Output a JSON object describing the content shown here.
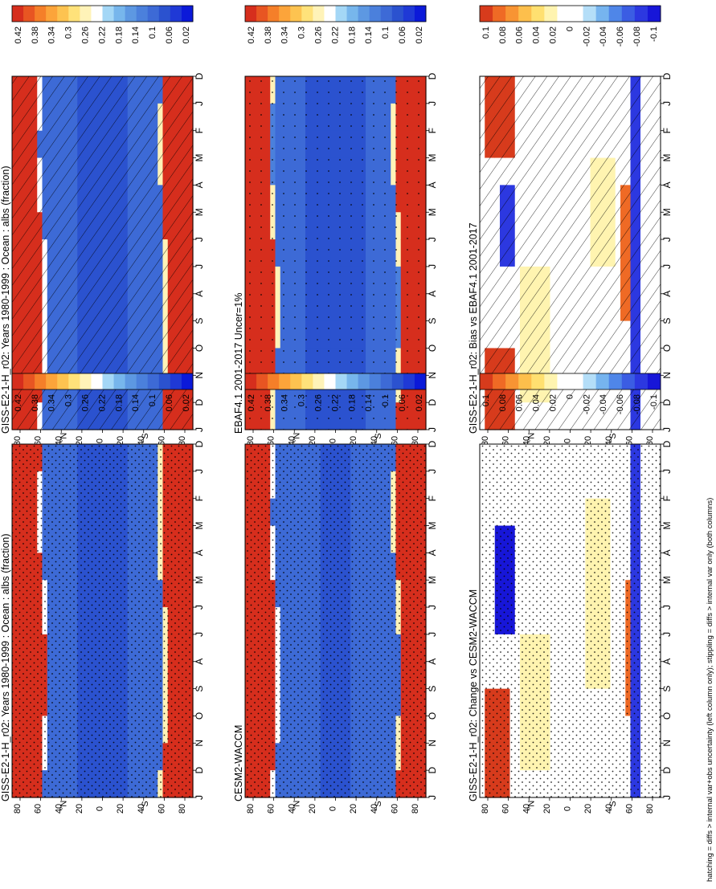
{
  "figure": {
    "footnote": "hatching = diffs > internal var+obs uncertainty (left column only); stippling = diffs > internal var only (both columns)"
  },
  "colors": {
    "abs_palette": [
      "#0b19d9",
      "#1f39d6",
      "#2b52cf",
      "#3d6ad6",
      "#4b80dc",
      "#5d98e2",
      "#77b6ec",
      "#a4d7f6",
      "#ffffff",
      "#fff3b8",
      "#ffe27a",
      "#fdc350",
      "#fca43a",
      "#f57f29",
      "#e85522",
      "#d62e1d"
    ],
    "diff_palette": [
      "#1716d8",
      "#2c38e0",
      "#3b5de3",
      "#4f86e8",
      "#76b4ef",
      "#b4def8",
      "#ffffff",
      "#ffffff",
      "#fff4b0",
      "#ffe070",
      "#fdbf4c",
      "#f89433",
      "#ef6a25",
      "#d73b1c"
    ]
  },
  "chart_data": [
    {
      "id": "gcm-ebaf",
      "type": "heatmap",
      "title": "GISS-E2-1-H_r02: Years 1980-1999 : Ocean : albs (fraction)",
      "x_ticks": [
        "D",
        "J",
        "F",
        "M",
        "A",
        "M",
        "J",
        "J",
        "A",
        "S",
        "O",
        "N",
        "D",
        "J"
      ],
      "y_ticks": [
        "80",
        "60",
        "40",
        "20",
        "0",
        "20",
        "40",
        "60",
        "80"
      ],
      "y_hemisphere_labels": [
        "°N",
        "°S"
      ],
      "colorbar": [
        "0.42",
        "0.38",
        "0.34",
        "0.3",
        "0.26",
        "0.22",
        "0.18",
        "0.14",
        "0.1",
        "0.06",
        "0.02"
      ],
      "overlay": "hatching",
      "field": "obs"
    },
    {
      "id": "ebaf",
      "type": "heatmap",
      "title": "EBAF4.1 2001-2017 Uncer=1%",
      "x_ticks": [
        "D",
        "J",
        "F",
        "M",
        "A",
        "M",
        "J",
        "J",
        "A",
        "S",
        "O",
        "N",
        "D",
        "J"
      ],
      "y_ticks": [
        "80",
        "60",
        "40",
        "20",
        "0",
        "20",
        "40",
        "60",
        "80"
      ],
      "y_hemisphere_labels": [
        "°N",
        "°S"
      ],
      "colorbar": [
        "0.42",
        "0.38",
        "0.34",
        "0.3",
        "0.26",
        "0.22",
        "0.18",
        "0.14",
        "0.1",
        "0.06",
        "0.02"
      ],
      "overlay": "sparse",
      "field": "obs2"
    },
    {
      "id": "bias-ebaf",
      "type": "heatmap",
      "title": "GISS-E2-1-H_r02: Bias vs EBAF4.1 2001-2017",
      "x_ticks": [
        "D",
        "J",
        "F",
        "M",
        "A",
        "M",
        "J",
        "J",
        "A",
        "S",
        "O",
        "N",
        "D",
        "J"
      ],
      "y_ticks": [
        "80",
        "60",
        "40",
        "20",
        "0",
        "20",
        "40",
        "60",
        "80"
      ],
      "y_hemisphere_labels": [
        "°N",
        "°S"
      ],
      "colorbar": [
        "0.1",
        "0.08",
        "0.06",
        "0.04",
        "0.02",
        "0",
        "-0.02",
        "-0.04",
        "-0.06",
        "-0.08",
        "-0.1"
      ],
      "overlay": "hatching",
      "field": "bias"
    },
    {
      "id": "gcm-cesm",
      "type": "heatmap",
      "title": "GISS-E2-1-H_r02: Years 1980-1999 : Ocean : albs (fraction)",
      "x_ticks": [
        "D",
        "J",
        "F",
        "M",
        "A",
        "M",
        "J",
        "J",
        "A",
        "S",
        "O",
        "N",
        "D",
        "J"
      ],
      "y_ticks": [
        "80",
        "60",
        "40",
        "20",
        "0",
        "20",
        "40",
        "60",
        "80"
      ],
      "y_hemisphere_labels": [
        "°N",
        "°S"
      ],
      "colorbar": [
        "0.42",
        "0.38",
        "0.34",
        "0.3",
        "0.26",
        "0.22",
        "0.18",
        "0.14",
        "0.1",
        "0.06",
        "0.02"
      ],
      "overlay": "stipple",
      "field": "model"
    },
    {
      "id": "cesm",
      "type": "heatmap",
      "title": "CESM2-WACCM",
      "x_ticks": [
        "D",
        "J",
        "F",
        "M",
        "A",
        "M",
        "J",
        "J",
        "A",
        "S",
        "O",
        "N",
        "D",
        "J"
      ],
      "y_ticks": [
        "80",
        "60",
        "40",
        "20",
        "0",
        "20",
        "40",
        "60",
        "80"
      ],
      "y_hemisphere_labels": [
        "°N",
        "°S"
      ],
      "colorbar": [
        "0.42",
        "0.38",
        "0.34",
        "0.3",
        "0.26",
        "0.22",
        "0.18",
        "0.14",
        "0.1",
        "0.06",
        "0.02"
      ],
      "overlay": "stipple",
      "field": "model2"
    },
    {
      "id": "change-cesm",
      "type": "heatmap",
      "title": "GISS-E2-1-H_r02: Change vs CESM2-WACCM",
      "x_ticks": [
        "D",
        "J",
        "F",
        "M",
        "A",
        "M",
        "J",
        "J",
        "A",
        "S",
        "O",
        "N",
        "D",
        "J"
      ],
      "y_ticks": [
        "80",
        "60",
        "40",
        "20",
        "0",
        "20",
        "40",
        "60",
        "80"
      ],
      "y_hemisphere_labels": [
        "°N",
        "°S"
      ],
      "colorbar": [
        "0.1",
        "0.08",
        "0.06",
        "0.04",
        "0.02",
        "0",
        "-0.02",
        "-0.04",
        "-0.06",
        "-0.08",
        "-0.1"
      ],
      "overlay": "stipple",
      "field": "change"
    }
  ]
}
